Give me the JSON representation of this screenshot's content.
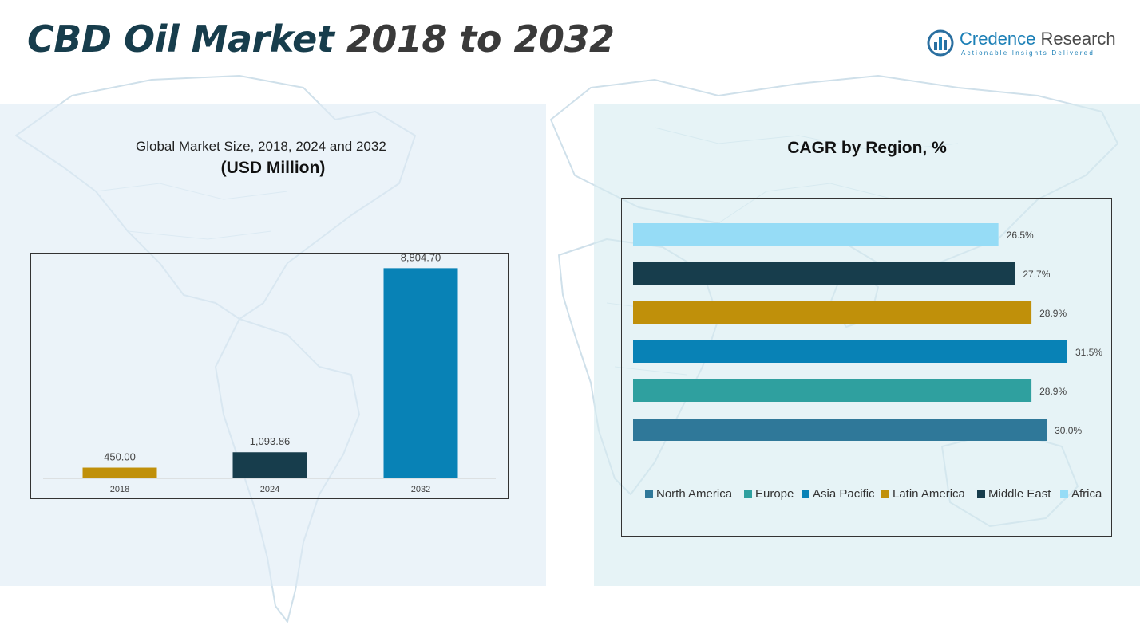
{
  "header": {
    "title_part1": "CBD Oil Market ",
    "title_part2": "2018 to 2032"
  },
  "logo": {
    "name_part1": "Credence",
    "name_part2": " Research",
    "tagline": "Actionable Insights Delivered",
    "icon": "bar-chart-logo-icon"
  },
  "left_panel": {
    "subtitle": "Global Market Size, 2018, 2024 and 2032",
    "unit": "(USD Million)"
  },
  "right_panel": {
    "title": "CAGR by Region, %"
  },
  "colors": {
    "gold": "#c0900a",
    "navy": "#173d4c",
    "blue": "#0882b6",
    "teal": "#2fa09f",
    "steel": "#2f7899",
    "sky": "#96dcf6"
  },
  "chart_data": [
    {
      "type": "bar",
      "categories": [
        "2018",
        "2024",
        "2032"
      ],
      "values": [
        450.0,
        1093.86,
        8804.7
      ],
      "value_labels": [
        "450.00",
        "1,093.86",
        "8,804.70"
      ],
      "colors": [
        "#c0900a",
        "#173d4c",
        "#0882b6"
      ],
      "ylim": [
        0,
        10000
      ],
      "grid": false,
      "legend": "none"
    },
    {
      "type": "bar",
      "orientation": "horizontal",
      "categories": [
        "Africa",
        "Middle East",
        "Latin America",
        "Asia Pacific",
        "Europe",
        "North America"
      ],
      "values": [
        26.5,
        27.7,
        28.9,
        31.5,
        28.9,
        30.0
      ],
      "value_labels": [
        "26.5%",
        "27.7%",
        "28.9%",
        "31.5%",
        "28.9%",
        "30.0%"
      ],
      "colors": [
        "#96dcf6",
        "#173d4c",
        "#c0900a",
        "#0882b6",
        "#2fa09f",
        "#2f7899"
      ],
      "xlim": [
        0,
        31.5
      ],
      "grid": false,
      "legend": "bottom",
      "legend_entries": [
        {
          "label": "North America",
          "color": "#2f7899"
        },
        {
          "label": "Europe",
          "color": "#2fa09f"
        },
        {
          "label": "Asia Pacific",
          "color": "#0882b6"
        },
        {
          "label": "Latin America",
          "color": "#c0900a"
        },
        {
          "label": "Middle East",
          "color": "#173d4c"
        },
        {
          "label": "Africa",
          "color": "#96dcf6"
        }
      ]
    }
  ]
}
